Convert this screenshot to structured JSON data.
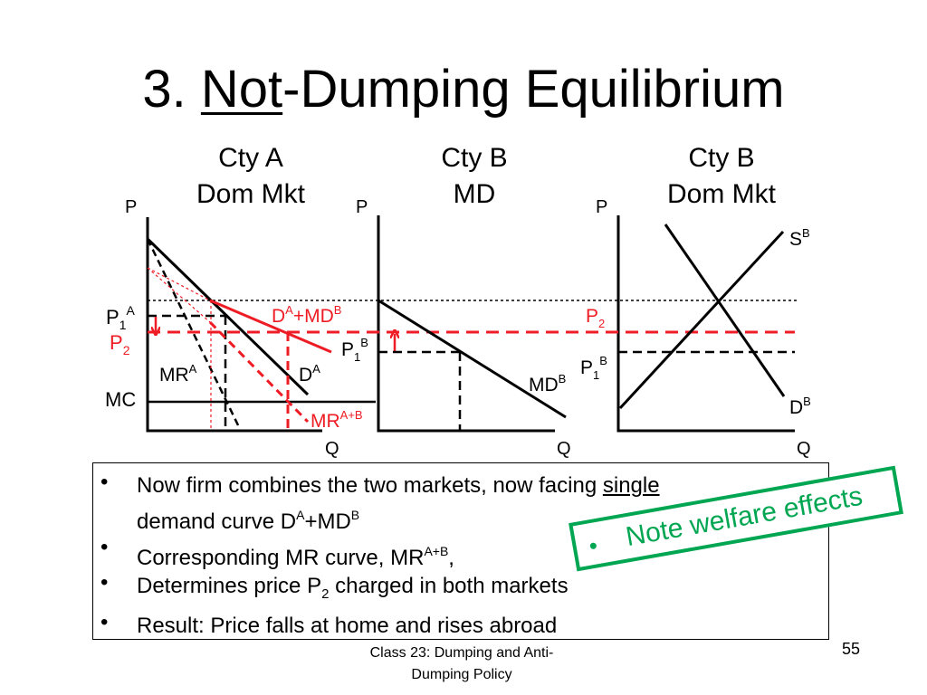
{
  "slide": {
    "title_prefix": "3.  ",
    "title_underlined": "Not",
    "title_rest": "-Dumping Equilibrium",
    "footer_line1": "Class 23:  Dumping and Anti-",
    "footer_line2": "Dumping Policy",
    "page_number": "55"
  },
  "panels": {
    "a": {
      "heading1": "Cty A",
      "heading2": "Dom Mkt",
      "p_axis": "P",
      "q_axis": "Q"
    },
    "b": {
      "heading1": "Cty B",
      "heading2": "MD",
      "p_axis": "P",
      "q_axis": "Q"
    },
    "c": {
      "heading1": "Cty B",
      "heading2": "Dom Mkt",
      "p_axis": "P",
      "q_axis": "Q"
    }
  },
  "labels": {
    "p1a_main": "P",
    "p1a_sub": "1",
    "p1a_sup": "A",
    "p2_left_main": "P",
    "p2_left_sub": "2",
    "mc": "MC",
    "mra_main": "MR",
    "mra_sup": "A",
    "da_main": "D",
    "da_sup": "A",
    "dmd_main1": "D",
    "dmd_sup1": "A",
    "dmd_main2": "+MD",
    "dmd_sup2": "B",
    "mrab_main": "MR",
    "mrab_sup": "A+B",
    "p1b_mid_main": "P",
    "p1b_mid_sub": "1",
    "p1b_mid_sup": "B",
    "mdb_main": "MD",
    "mdb_sup": "B",
    "p2_right_main": "P",
    "p2_right_sub": "2",
    "p1b_right_main": "P",
    "p1b_right_sub": "1",
    "p1b_right_sup": "B",
    "sb_main": "S",
    "sb_sup": "B",
    "db_main": "D",
    "db_sup": "B"
  },
  "colors": {
    "red": "#ee1c24",
    "green": "#00a651",
    "black": "#000000"
  },
  "bullets": [
    {
      "icon": "bullet-dot",
      "a": "Now firm combines the two markets, now facing ",
      "b": "single",
      "line2_a": "demand curve D",
      "line2_sup1": "A",
      "line2_b": "+MD",
      "line2_sup2": "B"
    },
    {
      "icon": "bullet-dot",
      "a": "Corresponding MR curve, MR",
      "sup": "A+B",
      "b": ","
    },
    {
      "icon": "bullet-dot",
      "a": "Determines price P",
      "sub": "2",
      "b": " charged in both markets"
    },
    {
      "icon": "bullet-dot",
      "a": "Result:  Price falls at home and rises abroad"
    }
  ],
  "note": {
    "icon": "bullet-dot",
    "text": "Note welfare effects"
  }
}
